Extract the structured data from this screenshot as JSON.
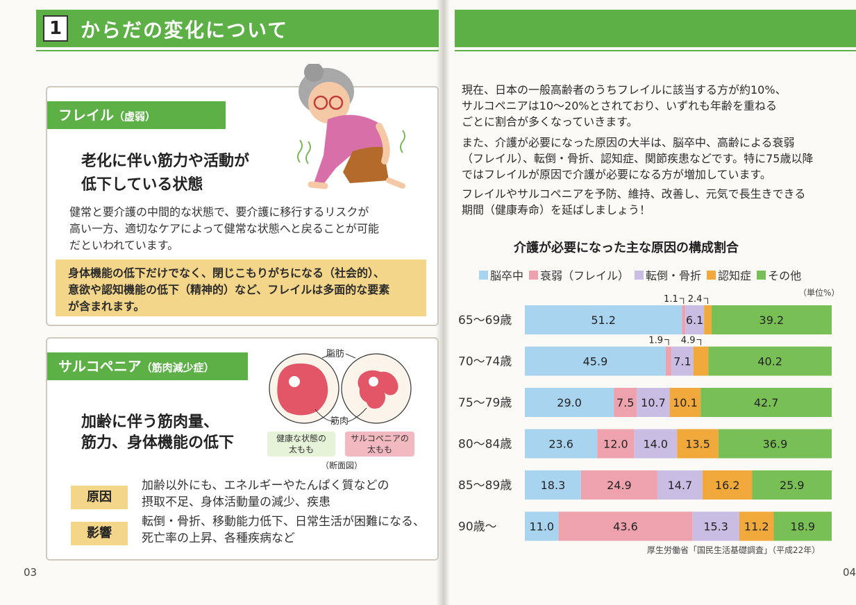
{
  "header": {
    "section_number": "1",
    "section_title": "からだの変化について"
  },
  "frailty": {
    "tag": "フレイル",
    "tag_sub": "（虚弱）",
    "headline_1": "老化に伴い筋力や活動が",
    "headline_2": "低下している状態",
    "body_1": "健常と要介護の中間的な状態で、要介護に移行するリスクが",
    "body_2": "高い一方、適切なケアによって健常な状態へと戻ることが可能",
    "body_3": "だといわれています。",
    "note_1": "身体機能の低下だけでなく、閉じこもりがちになる（社会的）、",
    "note_2": "意欲や認知機能の低下（精神的）など、フレイルは多面的な要素",
    "note_3": "が含まれます。"
  },
  "sarcopenia": {
    "tag": "サルコペニア",
    "tag_sub": "（筋肉減少症）",
    "headline_1": "加齢に伴う筋肉量、",
    "headline_2": "筋力、身体機能の低下",
    "label_fat": "脂肪",
    "label_muscle": "筋肉",
    "cap_healthy_1": "健康な状態の",
    "cap_healthy_2": "太もも",
    "cap_sarco_1": "サルコペニアの",
    "cap_sarco_2": "太もも",
    "cap_section": "（断面図）",
    "cause_label": "原因",
    "cause_1": "加齢以外にも、エネルギーやたんぱく質などの",
    "cause_2": "摂取不足、身体活動量の減少、疾患",
    "effect_label": "影響",
    "effect_1": "転倒・骨折、移動能力低下、日常生活が困難になる、",
    "effect_2": "死亡率の上昇、各種疾病など"
  },
  "page_left": "03",
  "page_right": "04",
  "intro": {
    "p1_1": "現在、日本の一般高齢者のうちフレイルに該当する方が約10%、",
    "p1_2": "サルコペニアは10～20%とされており、いずれも年齢を重ねる",
    "p1_3": "ごとに割合が多くなっていきます。",
    "p2_1": "また、介護が必要になった原因の大半は、脳卒中、高齢による衰弱",
    "p2_2": "（フレイル）、転倒・骨折、認知症、関節疾患などです。特に75歳以降",
    "p2_3": "ではフレイルが原因で介護が必要になる方が増加しています。",
    "p3_1": "フレイルやサルコペニアを予防、維持、改善し、元気で長生きできる",
    "p3_2": "期間（健康寿命）を延ばしましょう！"
  },
  "colors": {
    "green": "#5cb046",
    "stroke": "#a8d4ef",
    "frailty": "#eea2ae",
    "fall": "#c9bde3",
    "dementia": "#f2a93b",
    "other": "#78bf55"
  },
  "chart_data": {
    "type": "bar",
    "orientation": "horizontal-stacked-100",
    "title": "介護が必要になった主な原因の構成割合",
    "unit": "（単位%）",
    "source": "厚生労働省「国民生活基礎調査」（平成22年）",
    "categories": [
      "65～69歳",
      "70～74歳",
      "75～79歳",
      "80～84歳",
      "85～89歳",
      "90歳～"
    ],
    "series": [
      {
        "name": "脳卒中",
        "values": [
          51.2,
          45.9,
          29.0,
          23.6,
          18.3,
          11.0
        ]
      },
      {
        "name": "衰弱（フレイル）",
        "values": [
          1.1,
          1.9,
          7.5,
          12.0,
          24.9,
          43.6
        ]
      },
      {
        "name": "転倒・骨折",
        "values": [
          6.1,
          7.1,
          10.7,
          14.0,
          14.7,
          15.3
        ]
      },
      {
        "name": "認知症",
        "values": [
          2.4,
          4.9,
          10.1,
          13.5,
          16.2,
          11.2
        ]
      },
      {
        "name": "その他",
        "values": [
          39.2,
          40.2,
          42.7,
          36.9,
          25.9,
          18.9
        ]
      }
    ],
    "legend": "top"
  }
}
